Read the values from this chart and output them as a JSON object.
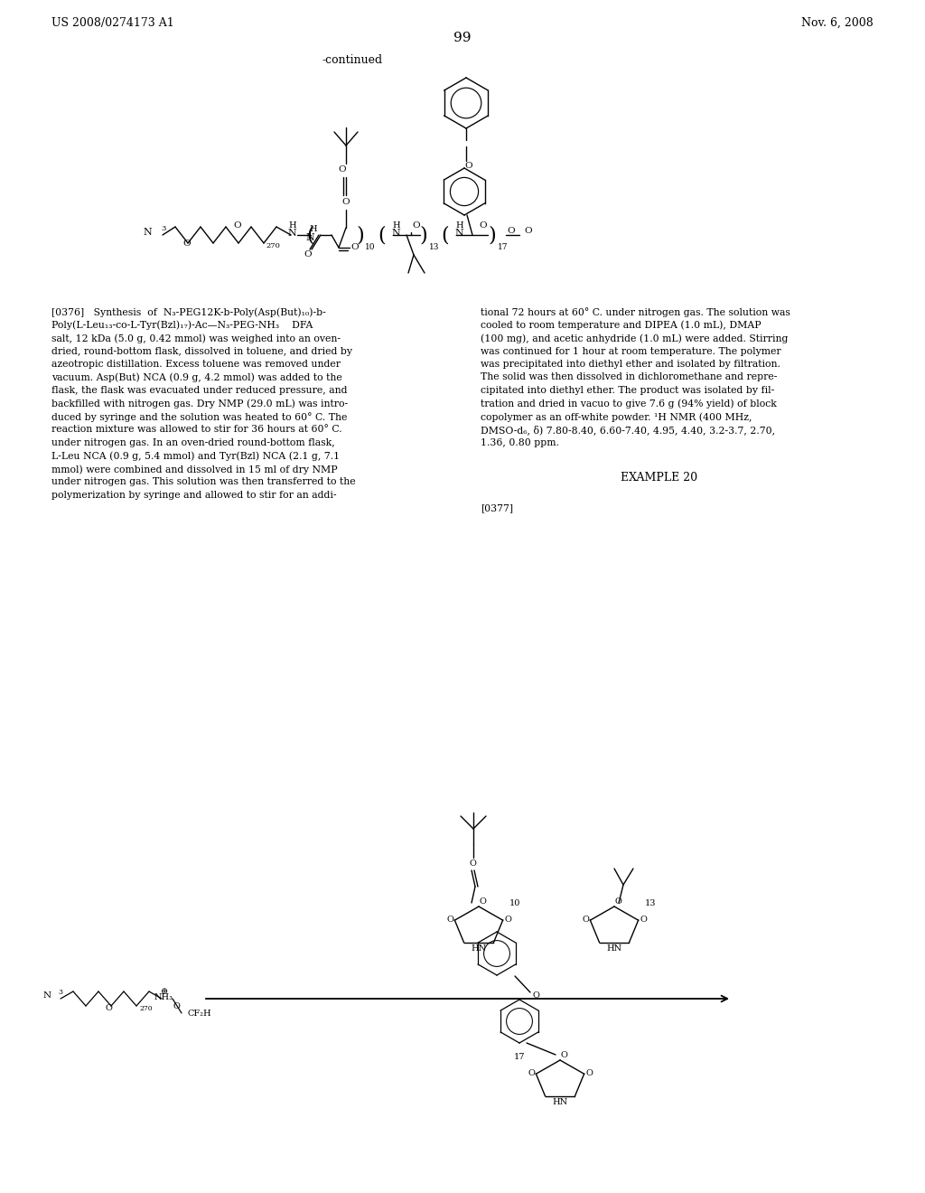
{
  "bg_color": "#ffffff",
  "header_left": "US 2008/0274173 A1",
  "header_right": "Nov. 6, 2008",
  "page_number": "99",
  "continued_text": "-continued",
  "paragraph_tag": "[0376]",
  "col1_line1": "[0376]   Synthesis  of  N₃-PEG12K-b-Poly(Asp(But)₁₀)-b-",
  "col1_line2": "Poly(L-Leu₁₃-co-L-Tyr(Bzl)₁₇)-Ac—N₃-PEG-NH₃    DFA",
  "col1_line3": "salt, 12 kDa (5.0 g, 0.42 mmol) was weighed into an oven-",
  "col1_line4": "dried, round-bottom flask, dissolved in toluene, and dried by",
  "col1_line5": "azeotropic distillation. Excess toluene was removed under",
  "col1_line6": "vacuum. Asp(But) NCA (0.9 g, 4.2 mmol) was added to the",
  "col1_line7": "flask, the flask was evacuated under reduced pressure, and",
  "col1_line8": "backfilled with nitrogen gas. Dry NMP (29.0 mL) was intro-",
  "col1_line9": "duced by syringe and the solution was heated to 60° C. The",
  "col1_line10": "reaction mixture was allowed to stir for 36 hours at 60° C.",
  "col1_line11": "under nitrogen gas. In an oven-dried round-bottom flask,",
  "col1_line12": "L-Leu NCA (0.9 g, 5.4 mmol) and Tyr(Bzl) NCA (2.1 g, 7.1",
  "col1_line13": "mmol) were combined and dissolved in 15 ml of dry NMP",
  "col1_line14": "under nitrogen gas. This solution was then transferred to the",
  "col1_line15": "polymerization by syringe and allowed to stir for an addi-",
  "col2_line1": "tional 72 hours at 60° C. under nitrogen gas. The solution was",
  "col2_line2": "cooled to room temperature and DIPEA (1.0 mL), DMAP",
  "col2_line3": "(100 mg), and acetic anhydride (1.0 mL) were added. Stirring",
  "col2_line4": "was continued for 1 hour at room temperature. The polymer",
  "col2_line5": "was precipitated into diethyl ether and isolated by filtration.",
  "col2_line6": "The solid was then dissolved in dichloromethane and repre-",
  "col2_line7": "cipitated into diethyl ether. The product was isolated by fil-",
  "col2_line8": "tration and dried in vacuo to give 7.6 g (94% yield) of block",
  "col2_line9": "copolymer as an off-white powder. ¹H NMR (400 MHz,",
  "col2_line10": "DMSO-d₆, δ) 7.80-8.40, 6.60-7.40, 4.95, 4.40, 3.2-3.7, 2.70,",
  "col2_line11": "1.36, 0.80 ppm.",
  "example_20": "EXAMPLE 20",
  "para_0377": "[0377]"
}
